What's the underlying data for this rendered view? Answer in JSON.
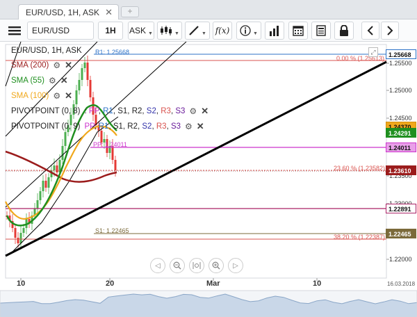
{
  "tab": {
    "title": "EUR/USD, 1H, ASK",
    "close": "✕",
    "add": "+"
  },
  "toolbar": {
    "menu_icon": "hamburger-icon",
    "symbol": "EUR/USD",
    "timeframe": "1H",
    "price_side": "ASK",
    "tools": [
      "candles-icon",
      "draw-icon",
      "fx",
      "info-icon",
      "bars-icon",
      "calendar-icon",
      "report-icon",
      "lock-icon",
      "prev-icon",
      "next-icon"
    ],
    "fx_label": "f(x)"
  },
  "legend": {
    "title": "EUR/USD, 1H, ASK",
    "sma200": "SMA (200)",
    "sma55": "SMA (55)",
    "sma100": "SMA (100)",
    "pivot1": {
      "name": "PIVOTPOINT (0, 8)",
      "parts": [
        ": ",
        "PP",
        ", ",
        "R1",
        ", ",
        "S1",
        ", ",
        "R2",
        ", ",
        "S2",
        ", ",
        "R3",
        ", ",
        "S3"
      ]
    },
    "pivot2": {
      "name": "PIVOTPOINT (0, 9)",
      "parts": [
        "",
        "PP",
        ", ",
        "R1",
        ", ",
        "S1",
        ", ",
        "R2",
        ", ",
        "S2",
        ", ",
        "R3",
        ", ",
        "S3"
      ]
    }
  },
  "colors": {
    "sma200": "#9b1c1c",
    "sma55": "#1f8f1f",
    "sma100": "#f0a81c",
    "r1": "#2c72c7",
    "pp": "#cc33cc",
    "fib": "#d9534f",
    "s1": "#7b6a3a",
    "candle_up": "#4caf50",
    "candle_down": "#e53935"
  },
  "price_axis": {
    "ticks": [
      "1.25500",
      "1.25000",
      "1.24500",
      "1.23500",
      "1.23000",
      "1.22500",
      "1.22000"
    ],
    "tags": [
      {
        "value": "1.25668",
        "kind": "r1"
      },
      {
        "value": "1.24370",
        "kind": "sma100"
      },
      {
        "value": "1.24291",
        "kind": "sma55"
      },
      {
        "value": "1.24011",
        "kind": "pp"
      },
      {
        "value": "1.23610",
        "kind": "current"
      },
      {
        "value": "1.22891",
        "kind": "pp2"
      },
      {
        "value": "1.22465",
        "kind": "s1"
      }
    ]
  },
  "line_labels": {
    "r1": "R1: 1.25668",
    "fib0": "0.00 % (1.25613)",
    "pp": "PP: 1.24011",
    "fib236": "23.60 % (1.23582)",
    "s1": "S1: 1.22465",
    "fib382": "38.20 % (1.22387)"
  },
  "time_axis": {
    "labels": [
      "10",
      "20",
      "Mar",
      "10"
    ],
    "date": "16.03.2018"
  }
}
